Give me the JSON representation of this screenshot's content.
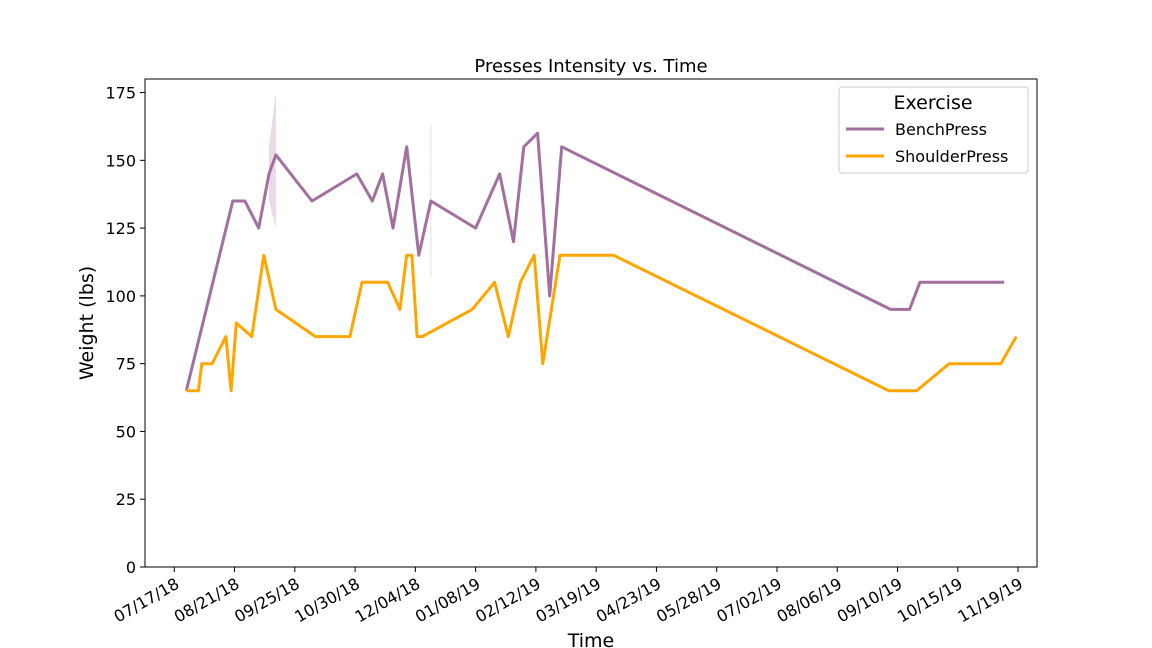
{
  "chart_data": {
    "type": "line",
    "title": "Presses Intensity vs. Time",
    "xlabel": "Time",
    "ylabel": "Weight (lbs)",
    "ylim": [
      0,
      180
    ],
    "yticks": [
      0,
      25,
      50,
      75,
      100,
      125,
      150,
      175
    ],
    "xlim": [
      "2018-06-30",
      "2019-11-30"
    ],
    "xticks": [
      "2018-07-17",
      "2018-08-21",
      "2018-09-25",
      "2018-10-30",
      "2018-12-04",
      "2019-01-08",
      "2019-02-12",
      "2019-03-19",
      "2019-04-23",
      "2019-05-28",
      "2019-07-02",
      "2019-08-06",
      "2019-09-10",
      "2019-10-15",
      "2019-11-19"
    ],
    "xtick_labels": [
      "07/17/18",
      "08/21/18",
      "09/25/18",
      "10/30/18",
      "12/04/18",
      "01/08/19",
      "02/12/19",
      "03/19/19",
      "04/23/19",
      "05/28/19",
      "07/02/19",
      "08/06/19",
      "09/10/19",
      "10/15/19",
      "11/19/19"
    ],
    "grid": false,
    "legend": {
      "title": "Exercise",
      "position": "top-right"
    },
    "series": [
      {
        "name": "BenchPress",
        "color": "#a26f9e",
        "points": [
          [
            "2018-07-24",
            65
          ],
          [
            "2018-08-20",
            135
          ],
          [
            "2018-08-27",
            135
          ],
          [
            "2018-09-04",
            125
          ],
          [
            "2018-09-10",
            145
          ],
          [
            "2018-09-14",
            152
          ],
          [
            "2018-10-05",
            135
          ],
          [
            "2018-10-31",
            145
          ],
          [
            "2018-11-09",
            135
          ],
          [
            "2018-11-15",
            145
          ],
          [
            "2018-11-21",
            125
          ],
          [
            "2018-11-29",
            155
          ],
          [
            "2018-12-06",
            115
          ],
          [
            "2018-12-13",
            135
          ],
          [
            "2019-01-08",
            125
          ],
          [
            "2019-01-22",
            145
          ],
          [
            "2019-01-30",
            120
          ],
          [
            "2019-02-05",
            155
          ],
          [
            "2019-02-13",
            160
          ],
          [
            "2019-02-20",
            100
          ],
          [
            "2019-02-27",
            155
          ],
          [
            "2019-09-06",
            95
          ],
          [
            "2019-09-17",
            95
          ],
          [
            "2019-09-23",
            105
          ],
          [
            "2019-11-11",
            105
          ]
        ],
        "ci_bands": [
          {
            "x": [
              "2018-09-10",
              "2018-09-14"
            ],
            "lower": [
              135,
              125
            ],
            "upper": [
              155,
              175
            ]
          },
          {
            "x": [
              "2018-12-13"
            ],
            "lower": [
              107
            ],
            "upper": [
              163
            ]
          }
        ]
      },
      {
        "name": "ShoulderPress",
        "color": "#ffa500",
        "points": [
          [
            "2018-07-24",
            65
          ],
          [
            "2018-07-31",
            65
          ],
          [
            "2018-08-02",
            75
          ],
          [
            "2018-08-08",
            75
          ],
          [
            "2018-08-16",
            85
          ],
          [
            "2018-08-19",
            65
          ],
          [
            "2018-08-22",
            90
          ],
          [
            "2018-08-31",
            85
          ],
          [
            "2018-09-07",
            115
          ],
          [
            "2018-09-14",
            95
          ],
          [
            "2018-10-07",
            85
          ],
          [
            "2018-10-27",
            85
          ],
          [
            "2018-11-03",
            105
          ],
          [
            "2018-11-18",
            105
          ],
          [
            "2018-11-25",
            95
          ],
          [
            "2018-11-29",
            115
          ],
          [
            "2018-12-02",
            115
          ],
          [
            "2018-12-05",
            85
          ],
          [
            "2018-12-08",
            85
          ],
          [
            "2019-01-06",
            95
          ],
          [
            "2019-01-19",
            105
          ],
          [
            "2019-01-27",
            85
          ],
          [
            "2019-02-03",
            105
          ],
          [
            "2019-02-11",
            115
          ],
          [
            "2019-02-16",
            75
          ],
          [
            "2019-02-26",
            115
          ],
          [
            "2019-03-29",
            115
          ],
          [
            "2019-09-05",
            65
          ],
          [
            "2019-09-21",
            65
          ],
          [
            "2019-10-10",
            75
          ],
          [
            "2019-11-09",
            75
          ],
          [
            "2019-11-18",
            85
          ]
        ]
      }
    ]
  }
}
